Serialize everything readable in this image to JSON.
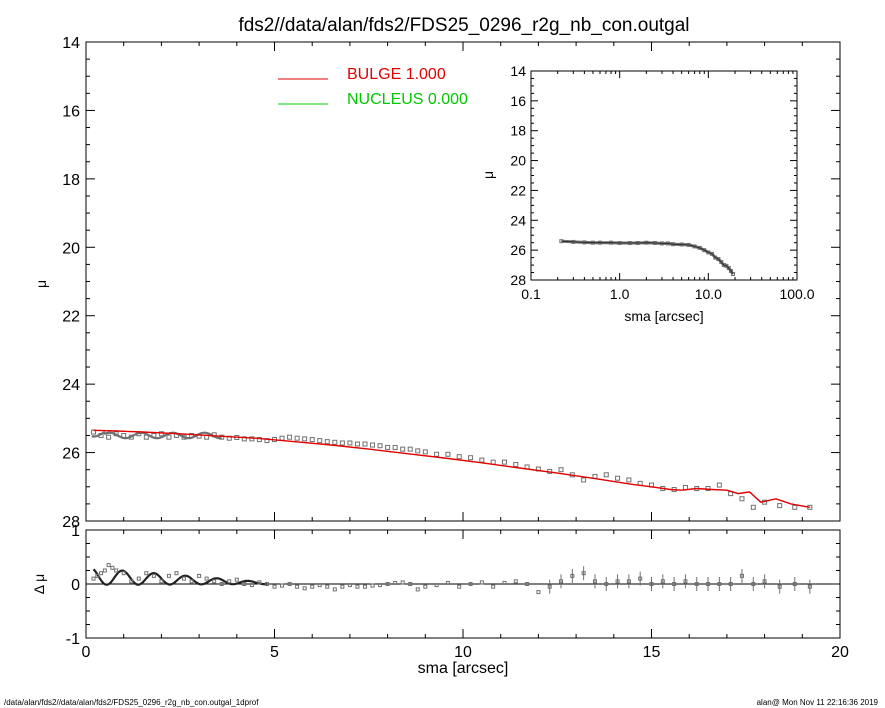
{
  "title": "fds2//data/alan/fds2/FDS25_0296_r2g_nb_con.outgal",
  "footer_left": "/data/alan/fds2//data/alan/fds2/FDS25_0296_r2g_nb_con.outgal_1dprof",
  "footer_right": "alan@  Mon Nov 11 22:16:36 2019",
  "colors": {
    "bulge": "#e00000",
    "nucleus": "#00d000",
    "data": "#707070",
    "axes": "#000000"
  },
  "chart_data": [
    {
      "id": "main",
      "type": "scatter",
      "ylabel": "μ",
      "xlim": [
        0,
        20
      ],
      "ylim": [
        28,
        14
      ],
      "y_ticks": [
        "14",
        "16",
        "18",
        "20",
        "22",
        "24",
        "26",
        "28"
      ],
      "legend": [
        {
          "label": "BULGE  1.000",
          "color": "#e00000"
        },
        {
          "label": "NUCLEUS  0.000",
          "color": "#00d000"
        }
      ],
      "model": {
        "name": "BULGE",
        "x": [
          0.2,
          0.8,
          1.5,
          2.5,
          3.5,
          4.5,
          5.5,
          6.5,
          7.5,
          8.5,
          9.5,
          10.5,
          11.5,
          12.5,
          13.5,
          14.5,
          15.0,
          15.5,
          15.8,
          16.2,
          16.6,
          17.0,
          17.3,
          17.6,
          17.9,
          18.3,
          18.7,
          19.2
        ],
        "y": [
          25.35,
          25.37,
          25.4,
          25.45,
          25.52,
          25.58,
          25.68,
          25.78,
          25.9,
          26.03,
          26.16,
          26.3,
          26.45,
          26.6,
          26.76,
          26.93,
          27.0,
          27.08,
          27.1,
          27.05,
          27.08,
          27.1,
          27.2,
          27.15,
          27.45,
          27.35,
          27.5,
          27.6
        ]
      },
      "points": {
        "x": [
          0.2,
          0.4,
          0.6,
          0.8,
          1.0,
          1.2,
          1.4,
          1.6,
          1.8,
          2.0,
          2.2,
          2.4,
          2.6,
          2.8,
          3.0,
          3.2,
          3.4,
          3.6,
          3.8,
          4.0,
          4.2,
          4.4,
          4.6,
          4.8,
          5.0,
          5.2,
          5.4,
          5.6,
          5.8,
          6.0,
          6.2,
          6.4,
          6.6,
          6.8,
          7.0,
          7.2,
          7.4,
          7.6,
          7.8,
          8.0,
          8.2,
          8.4,
          8.6,
          8.8,
          9.0,
          9.3,
          9.6,
          9.9,
          10.2,
          10.5,
          10.8,
          11.1,
          11.4,
          11.7,
          12.0,
          12.3,
          12.6,
          12.9,
          13.2,
          13.5,
          13.8,
          14.1,
          14.4,
          14.7,
          15.0,
          15.3,
          15.6,
          15.9,
          16.2,
          16.5,
          16.8,
          17.1,
          17.4,
          17.7,
          18.0,
          18.4,
          18.8,
          19.2
        ],
        "y": [
          25.4,
          25.5,
          25.55,
          25.45,
          25.5,
          25.55,
          25.45,
          25.55,
          25.5,
          25.45,
          25.55,
          25.5,
          25.55,
          25.5,
          25.52,
          25.55,
          25.48,
          25.55,
          25.58,
          25.56,
          25.6,
          25.6,
          25.62,
          25.65,
          25.62,
          25.58,
          25.55,
          25.58,
          25.6,
          25.62,
          25.65,
          25.68,
          25.7,
          25.72,
          25.72,
          25.75,
          25.75,
          25.78,
          25.8,
          25.85,
          25.85,
          25.9,
          25.9,
          25.95,
          25.98,
          26.05,
          26.05,
          26.12,
          26.15,
          26.22,
          26.28,
          26.28,
          26.35,
          26.42,
          26.48,
          26.55,
          26.5,
          26.65,
          26.8,
          26.7,
          26.65,
          26.75,
          26.8,
          26.9,
          26.95,
          27.05,
          27.08,
          27.02,
          27.05,
          27.05,
          26.95,
          27.2,
          27.35,
          27.6,
          27.45,
          27.55,
          27.6,
          27.6
        ]
      }
    },
    {
      "id": "inset",
      "type": "scatter",
      "xlabel": "sma [arcsec]",
      "ylabel": "μ",
      "xscale": "log",
      "xlim": [
        0.1,
        100
      ],
      "ylim": [
        28,
        14
      ],
      "x_ticks": [
        "0.1",
        "1.0",
        "10.0",
        "100.0"
      ],
      "y_ticks": [
        "14",
        "16",
        "18",
        "20",
        "22",
        "24",
        "26",
        "28"
      ],
      "points": {
        "x": [
          0.22,
          0.3,
          0.4,
          0.5,
          0.6,
          0.8,
          1.0,
          1.3,
          1.6,
          2.0,
          2.5,
          3.0,
          3.5,
          4.0,
          5.0,
          6.0,
          7.0,
          8.0,
          9.0,
          10.0,
          11.0,
          12.0,
          13.0,
          14.0,
          15.0,
          16.0,
          17.0,
          18.0,
          19.0
        ],
        "y": [
          25.4,
          25.45,
          25.48,
          25.5,
          25.5,
          25.5,
          25.52,
          25.52,
          25.52,
          25.5,
          25.52,
          25.55,
          25.55,
          25.6,
          25.62,
          25.65,
          25.75,
          25.85,
          26.0,
          26.15,
          26.25,
          26.5,
          26.6,
          26.8,
          27.0,
          27.05,
          27.2,
          27.4,
          27.6
        ]
      }
    },
    {
      "id": "residual",
      "type": "scatter",
      "xlabel": "sma [arcsec]",
      "ylabel": "Δ μ",
      "xlim": [
        0,
        20
      ],
      "ylim": [
        -1,
        1
      ],
      "x_ticks": [
        "0",
        "5",
        "10",
        "15",
        "20"
      ],
      "y_ticks": [
        "1",
        "0",
        "-1"
      ],
      "points": {
        "x": [
          0.2,
          0.3,
          0.4,
          0.5,
          0.6,
          0.7,
          0.8,
          1.0,
          1.2,
          1.4,
          1.6,
          1.8,
          2.0,
          2.2,
          2.4,
          2.6,
          2.8,
          3.0,
          3.2,
          3.4,
          3.6,
          3.8,
          4.0,
          4.2,
          4.4,
          4.6,
          4.8,
          5.0,
          5.2,
          5.4,
          5.6,
          5.8,
          6.0,
          6.2,
          6.4,
          6.6,
          6.8,
          7.0,
          7.2,
          7.4,
          7.6,
          7.8,
          8.0,
          8.2,
          8.4,
          8.6,
          8.8,
          9.0,
          9.3,
          9.6,
          9.9,
          10.2,
          10.5,
          10.8,
          11.1,
          11.4,
          11.7,
          12.0,
          12.3,
          12.6,
          12.9,
          13.2,
          13.5,
          13.8,
          14.1,
          14.4,
          14.7,
          15.0,
          15.3,
          15.6,
          15.9,
          16.2,
          16.5,
          16.8,
          17.1,
          17.4,
          17.7,
          18.0,
          18.4,
          18.8,
          19.2
        ],
        "y": [
          0.1,
          0.15,
          0.2,
          0.25,
          0.35,
          0.3,
          0.25,
          0.2,
          0.05,
          0.1,
          0.2,
          0.15,
          0.05,
          0.15,
          0.2,
          0.1,
          0.05,
          0.15,
          0.1,
          0.05,
          0.0,
          0.05,
          0.08,
          0.0,
          -0.02,
          0.03,
          0.0,
          -0.05,
          -0.03,
          0.0,
          -0.05,
          -0.08,
          -0.05,
          -0.02,
          -0.05,
          -0.1,
          -0.05,
          -0.02,
          -0.05,
          -0.05,
          -0.03,
          -0.02,
          0.0,
          0.02,
          0.03,
          0.0,
          -0.1,
          -0.05,
          -0.02,
          0.02,
          -0.05,
          0.0,
          0.03,
          -0.05,
          0.02,
          0.05,
          0.0,
          -0.15,
          -0.05,
          0.05,
          0.15,
          0.2,
          0.05,
          0.0,
          0.05,
          0.05,
          0.1,
          0.0,
          0.05,
          0.0,
          0.05,
          0.0,
          0.0,
          0.0,
          0.0,
          0.15,
          0.0,
          0.05,
          -0.05,
          0.0,
          -0.05
        ]
      }
    }
  ]
}
